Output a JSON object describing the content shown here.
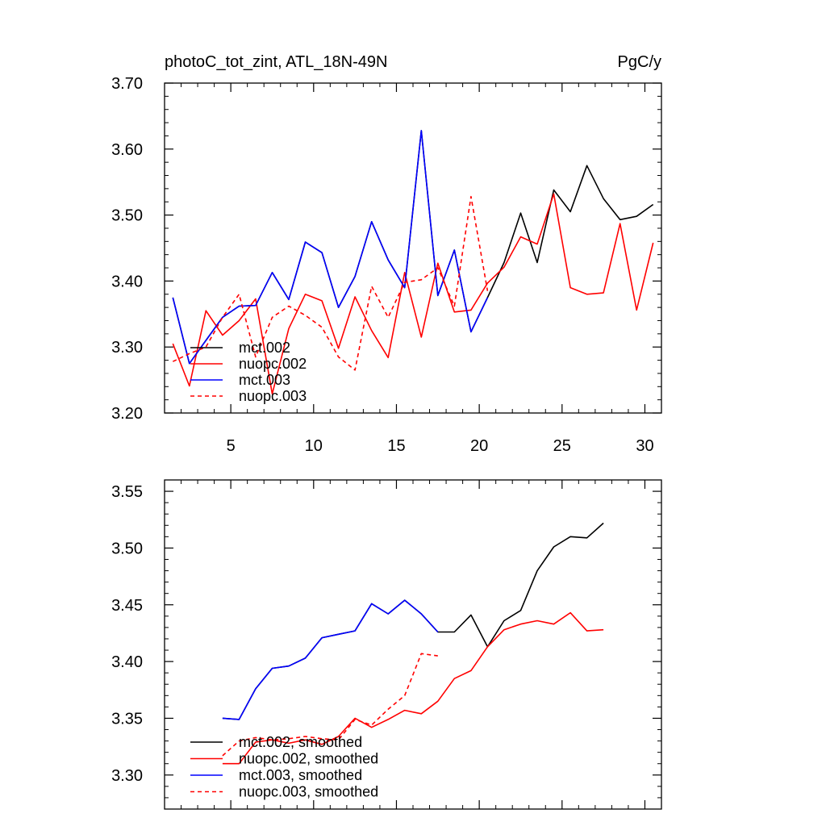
{
  "chart_data": [
    {
      "type": "line",
      "title": "photoC_tot_zint, ATL_18N-49N",
      "units": "PgC/y",
      "xlabel": "",
      "ylabel": "",
      "xlim": [
        1,
        31
      ],
      "ylim": [
        3.2,
        3.7
      ],
      "xticks": [
        5,
        10,
        15,
        20,
        25,
        30
      ],
      "xtick_labels": [
        "5",
        "10",
        "15",
        "20",
        "25",
        "30"
      ],
      "yticks": [
        3.2,
        3.3,
        3.4,
        3.5,
        3.6,
        3.7
      ],
      "ytick_labels": [
        "3.20",
        "3.30",
        "3.40",
        "3.50",
        "3.60",
        "3.70"
      ],
      "legend_position": "bottom-left",
      "series": [
        {
          "name": "mct.002",
          "color": "#000000",
          "dash": "solid",
          "x": [
            1.5,
            2.5,
            3.5,
            4.5,
            5.5,
            6.5,
            7.5,
            8.5,
            9.5,
            10.5,
            11.5,
            12.5,
            13.5,
            14.5,
            15.5,
            16.5,
            17.5,
            18.5,
            19.5,
            20.5,
            21.5,
            22.5,
            23.5,
            24.5,
            25.5,
            26.5,
            27.5,
            28.5,
            29.5,
            30.5
          ],
          "values": [
            3.375,
            3.275,
            3.31,
            3.345,
            3.362,
            3.363,
            3.413,
            3.372,
            3.459,
            3.443,
            3.36,
            3.407,
            3.49,
            3.432,
            3.39,
            3.628,
            3.378,
            3.447,
            3.323,
            3.375,
            3.428,
            3.503,
            3.428,
            3.538,
            3.505,
            3.575,
            3.525,
            3.493,
            3.498,
            3.516
          ]
        },
        {
          "name": "nuopc.002",
          "color": "#ff0000",
          "dash": "solid",
          "x": [
            1.5,
            2.5,
            3.5,
            4.5,
            5.5,
            6.5,
            7.5,
            8.5,
            9.5,
            10.5,
            11.5,
            12.5,
            13.5,
            14.5,
            15.5,
            16.5,
            17.5,
            18.5,
            19.5,
            20.5,
            21.5,
            22.5,
            23.5,
            24.5,
            25.5,
            26.5,
            27.5,
            28.5,
            29.5,
            30.5
          ],
          "values": [
            3.305,
            3.241,
            3.355,
            3.318,
            3.34,
            3.373,
            3.229,
            3.328,
            3.38,
            3.37,
            3.298,
            3.376,
            3.325,
            3.284,
            3.413,
            3.315,
            3.427,
            3.353,
            3.356,
            3.397,
            3.421,
            3.467,
            3.456,
            3.532,
            3.39,
            3.38,
            3.382,
            3.487,
            3.356,
            3.458
          ]
        },
        {
          "name": "mct.003",
          "color": "#0000ff",
          "dash": "solid",
          "x": [
            1.5,
            2.5,
            3.5,
            4.5,
            5.5,
            6.5,
            7.5,
            8.5,
            9.5,
            10.5,
            11.5,
            12.5,
            13.5,
            14.5,
            15.5,
            16.5,
            17.5,
            18.5,
            19.5,
            20.5
          ],
          "values": [
            3.375,
            3.275,
            3.31,
            3.345,
            3.362,
            3.363,
            3.413,
            3.372,
            3.459,
            3.443,
            3.36,
            3.407,
            3.49,
            3.432,
            3.39,
            3.628,
            3.378,
            3.447,
            3.323,
            3.375
          ]
        },
        {
          "name": "nuopc.003",
          "color": "#ff0000",
          "dash": "dashed",
          "x": [
            1.5,
            2.5,
            3.5,
            4.5,
            5.5,
            6.5,
            7.5,
            8.5,
            9.5,
            10.5,
            11.5,
            12.5,
            13.5,
            14.5,
            15.5,
            16.5,
            17.5,
            18.5,
            19.5,
            20.5
          ],
          "values": [
            3.278,
            3.29,
            3.3,
            3.345,
            3.38,
            3.285,
            3.345,
            3.362,
            3.348,
            3.33,
            3.285,
            3.265,
            3.392,
            3.345,
            3.398,
            3.402,
            3.42,
            3.362,
            3.528,
            3.385
          ]
        }
      ]
    },
    {
      "type": "line",
      "title": "",
      "xlabel": "",
      "ylabel": "",
      "xlim": [
        1,
        31
      ],
      "ylim": [
        3.27,
        3.56
      ],
      "xticks": [
        5,
        10,
        15,
        20,
        25,
        30
      ],
      "xtick_labels": [],
      "yticks": [
        3.3,
        3.35,
        3.4,
        3.45,
        3.5,
        3.55
      ],
      "ytick_labels": [
        "3.30",
        "3.35",
        "3.40",
        "3.45",
        "3.50",
        "3.55"
      ],
      "legend_position": "bottom-left",
      "series": [
        {
          "name": "mct.002, smoothed",
          "color": "#000000",
          "dash": "solid",
          "x": [
            4.5,
            5.5,
            6.5,
            7.5,
            8.5,
            9.5,
            10.5,
            11.5,
            12.5,
            13.5,
            14.5,
            15.5,
            16.5,
            17.5,
            18.5,
            19.5,
            20.5,
            21.5,
            22.5,
            23.5,
            24.5,
            25.5,
            26.5,
            27.5
          ],
          "values": [
            3.35,
            3.349,
            3.376,
            3.394,
            3.396,
            3.403,
            3.421,
            3.424,
            3.427,
            3.451,
            3.442,
            3.454,
            3.442,
            3.426,
            3.426,
            3.441,
            3.413,
            3.436,
            3.445,
            3.48,
            3.501,
            3.51,
            3.509,
            3.522
          ]
        },
        {
          "name": "nuopc.002, smoothed",
          "color": "#ff0000",
          "dash": "solid",
          "x": [
            4.5,
            5.5,
            6.5,
            7.5,
            8.5,
            9.5,
            10.5,
            11.5,
            12.5,
            13.5,
            14.5,
            15.5,
            16.5,
            17.5,
            18.5,
            19.5,
            20.5,
            21.5,
            22.5,
            23.5,
            24.5,
            25.5,
            26.5,
            27.5
          ],
          "values": [
            3.31,
            3.31,
            3.329,
            3.331,
            3.328,
            3.331,
            3.327,
            3.334,
            3.35,
            3.342,
            3.349,
            3.357,
            3.354,
            3.365,
            3.385,
            3.392,
            3.413,
            3.428,
            3.433,
            3.436,
            3.433,
            3.443,
            3.427,
            3.428
          ]
        },
        {
          "name": "mct.003, smoothed",
          "color": "#0000ff",
          "dash": "solid",
          "x": [
            4.5,
            5.5,
            6.5,
            7.5,
            8.5,
            9.5,
            10.5,
            11.5,
            12.5,
            13.5,
            14.5,
            15.5,
            16.5,
            17.5
          ],
          "values": [
            3.35,
            3.349,
            3.376,
            3.394,
            3.396,
            3.403,
            3.421,
            3.424,
            3.427,
            3.451,
            3.442,
            3.454,
            3.442,
            3.426
          ]
        },
        {
          "name": "nuopc.003, smoothed",
          "color": "#ff0000",
          "dash": "dashed",
          "x": [
            4.5,
            5.5,
            6.5,
            7.5,
            8.5,
            9.5,
            10.5,
            11.5,
            12.5,
            13.5,
            14.5,
            15.5,
            16.5,
            17.5
          ],
          "values": [
            3.317,
            3.33,
            3.333,
            3.331,
            3.332,
            3.334,
            3.332,
            3.331,
            3.349,
            3.344,
            3.358,
            3.37,
            3.407,
            3.405
          ]
        }
      ]
    }
  ]
}
